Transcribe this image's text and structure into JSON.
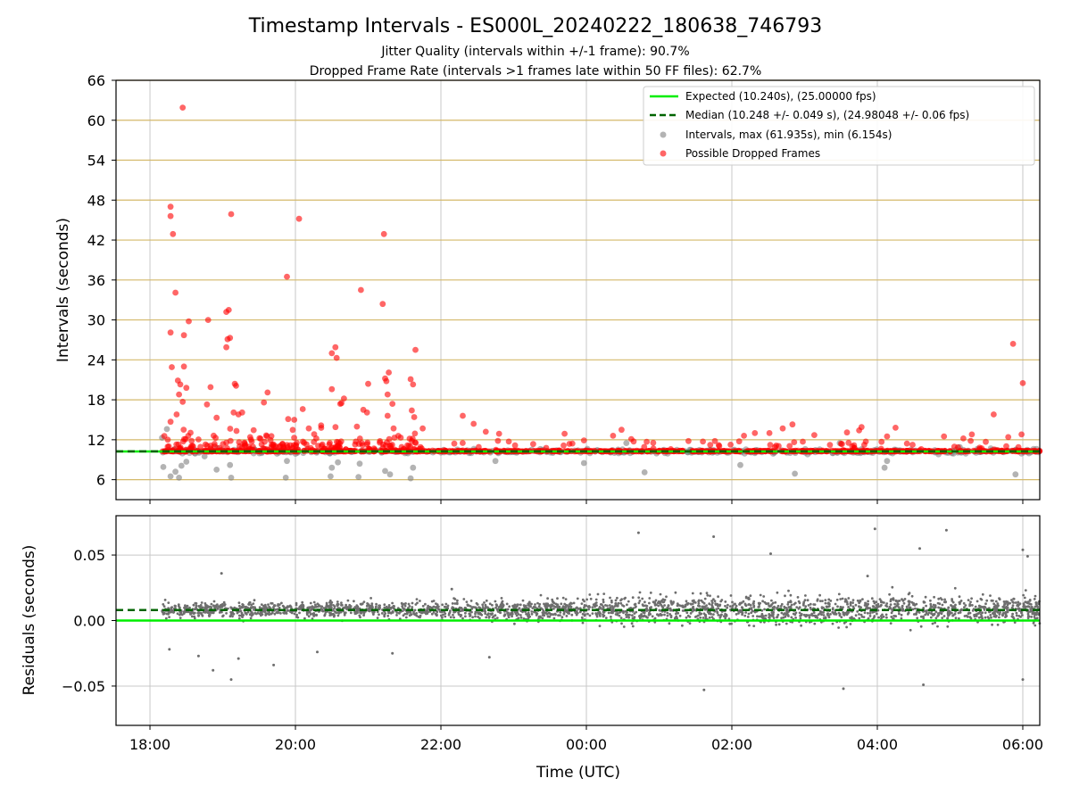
{
  "title": "Timestamp Intervals - ES000L_20240222_180638_746793",
  "subtitle_1": "Jitter Quality (intervals within +/-1 frame): 90.7%",
  "subtitle_2": "Dropped Frame Rate (intervals >1 frames late within 50 FF files): 62.7%",
  "colors": {
    "expected": "#00ee00",
    "median": "#006400",
    "intervals": "#808080",
    "dropped": "#ff0000",
    "gold_grid": "#d4b96a",
    "gray_grid": "#c8c8c8",
    "residuals": "#6e6e6e"
  },
  "chart_data": [
    {
      "type": "scatter",
      "ylabel": "Intervals (seconds)",
      "ylim": [
        3,
        66
      ],
      "yticks": [
        6,
        12,
        18,
        24,
        30,
        36,
        42,
        48,
        54,
        60,
        66
      ],
      "ytick_labels": [
        "6",
        "12",
        "18",
        "24",
        "30",
        "36",
        "42",
        "48",
        "54",
        "60",
        "66"
      ],
      "x_range_hours": [
        "17:32",
        "06:14"
      ],
      "grid": "horizontal gold lines at y ticks, vertical gray lines at x ticks",
      "expected_line": 10.24,
      "median_line": 10.248,
      "legend_position": "top-right",
      "legend": [
        {
          "label": "Expected (10.240s), (25.00000 fps)",
          "style": "solid green line"
        },
        {
          "label": "Median (10.248 +/- 0.049 s), (24.98048 +/- 0.06 fps)",
          "style": "dashed dark green line"
        },
        {
          "label": "Intervals, max (61.935s), min (6.154s)",
          "style": "gray dot"
        },
        {
          "label": "Possible Dropped Frames",
          "style": "red dot"
        }
      ],
      "interval_stats": {
        "max": 61.935,
        "min": 6.154
      },
      "dropped_outliers": [
        {
          "t": "18:27",
          "v": 61.9
        },
        {
          "t": "18:17",
          "v": 47.0
        },
        {
          "t": "18:17",
          "v": 45.6
        },
        {
          "t": "18:19",
          "v": 42.9
        },
        {
          "t": "18:21",
          "v": 34.1
        },
        {
          "t": "18:17",
          "v": 28.1
        },
        {
          "t": "18:32",
          "v": 29.8
        },
        {
          "t": "18:28",
          "v": 27.7
        },
        {
          "t": "18:48",
          "v": 30.0
        },
        {
          "t": "18:18",
          "v": 22.9
        },
        {
          "t": "18:28",
          "v": 23.0
        },
        {
          "t": "18:23",
          "v": 20.9
        },
        {
          "t": "18:25",
          "v": 20.3
        },
        {
          "t": "18:30",
          "v": 19.8
        },
        {
          "t": "18:50",
          "v": 19.9
        },
        {
          "t": "18:24",
          "v": 18.8
        },
        {
          "t": "18:27",
          "v": 17.7
        },
        {
          "t": "18:47",
          "v": 17.3
        },
        {
          "t": "18:55",
          "v": 15.3
        },
        {
          "t": "18:22",
          "v": 15.8
        },
        {
          "t": "18:17",
          "v": 14.7
        },
        {
          "t": "19:03",
          "v": 31.2
        },
        {
          "t": "19:05",
          "v": 31.5
        },
        {
          "t": "19:06",
          "v": 27.3
        },
        {
          "t": "19:04",
          "v": 27.1
        },
        {
          "t": "19:03",
          "v": 25.9
        },
        {
          "t": "19:07",
          "v": 45.9
        },
        {
          "t": "19:10",
          "v": 20.4
        },
        {
          "t": "19:11",
          "v": 20.1
        },
        {
          "t": "19:09",
          "v": 16.1
        },
        {
          "t": "19:13",
          "v": 15.8
        },
        {
          "t": "19:16",
          "v": 16.1
        },
        {
          "t": "19:34",
          "v": 17.6
        },
        {
          "t": "19:37",
          "v": 19.1
        },
        {
          "t": "19:53",
          "v": 36.5
        },
        {
          "t": "19:54",
          "v": 15.1
        },
        {
          "t": "19:59",
          "v": 15.0
        },
        {
          "t": "20:03",
          "v": 45.2
        },
        {
          "t": "20:06",
          "v": 16.6
        },
        {
          "t": "20:11",
          "v": 13.7
        },
        {
          "t": "20:30",
          "v": 25.0
        },
        {
          "t": "20:33",
          "v": 25.9
        },
        {
          "t": "20:34",
          "v": 24.3
        },
        {
          "t": "20:30",
          "v": 19.6
        },
        {
          "t": "20:38",
          "v": 17.5
        },
        {
          "t": "20:40",
          "v": 18.2
        },
        {
          "t": "20:37",
          "v": 17.4
        },
        {
          "t": "20:54",
          "v": 34.5
        },
        {
          "t": "21:00",
          "v": 20.4
        },
        {
          "t": "20:56",
          "v": 16.5
        },
        {
          "t": "20:59",
          "v": 16.1
        },
        {
          "t": "21:13",
          "v": 42.9
        },
        {
          "t": "21:12",
          "v": 32.4
        },
        {
          "t": "21:14",
          "v": 21.2
        },
        {
          "t": "21:17",
          "v": 22.1
        },
        {
          "t": "21:15",
          "v": 20.8
        },
        {
          "t": "21:16",
          "v": 18.8
        },
        {
          "t": "21:20",
          "v": 17.4
        },
        {
          "t": "21:16",
          "v": 15.6
        },
        {
          "t": "21:21",
          "v": 13.7
        },
        {
          "t": "21:35",
          "v": 21.1
        },
        {
          "t": "21:37",
          "v": 20.3
        },
        {
          "t": "21:39",
          "v": 25.5
        },
        {
          "t": "21:36",
          "v": 16.4
        },
        {
          "t": "21:38",
          "v": 15.4
        },
        {
          "t": "21:45",
          "v": 13.7
        },
        {
          "t": "22:18",
          "v": 15.6
        },
        {
          "t": "22:27",
          "v": 14.4
        },
        {
          "t": "22:37",
          "v": 13.2
        },
        {
          "t": "22:48",
          "v": 12.9
        },
        {
          "t": "23:42",
          "v": 12.9
        },
        {
          "t": "23:58",
          "v": 11.9
        },
        {
          "t": "00:22",
          "v": 12.6
        },
        {
          "t": "00:29",
          "v": 13.5
        },
        {
          "t": "00:37",
          "v": 12.1
        },
        {
          "t": "01:46",
          "v": 11.8
        },
        {
          "t": "02:10",
          "v": 12.6
        },
        {
          "t": "02:19",
          "v": 13.0
        },
        {
          "t": "02:31",
          "v": 13.0
        },
        {
          "t": "02:42",
          "v": 13.7
        },
        {
          "t": "02:50",
          "v": 14.3
        },
        {
          "t": "03:08",
          "v": 12.7
        },
        {
          "t": "03:35",
          "v": 13.1
        },
        {
          "t": "03:45",
          "v": 13.4
        },
        {
          "t": "03:47",
          "v": 13.9
        },
        {
          "t": "04:08",
          "v": 12.5
        },
        {
          "t": "04:15",
          "v": 13.8
        },
        {
          "t": "04:55",
          "v": 12.5
        },
        {
          "t": "05:11",
          "v": 12.2
        },
        {
          "t": "05:18",
          "v": 12.8
        },
        {
          "t": "05:36",
          "v": 15.8
        },
        {
          "t": "05:48",
          "v": 12.4
        },
        {
          "t": "05:52",
          "v": 26.4
        },
        {
          "t": "06:00",
          "v": 20.5
        },
        {
          "t": "05:59",
          "v": 12.8
        }
      ],
      "interval_outliers": [
        {
          "t": "18:10",
          "v": 12.3
        },
        {
          "t": "18:14",
          "v": 13.6
        },
        {
          "t": "18:11",
          "v": 7.9
        },
        {
          "t": "18:17",
          "v": 6.5
        },
        {
          "t": "18:21",
          "v": 7.2
        },
        {
          "t": "18:24",
          "v": 6.3
        },
        {
          "t": "18:26",
          "v": 8.1
        },
        {
          "t": "18:30",
          "v": 8.7
        },
        {
          "t": "18:45",
          "v": 9.5
        },
        {
          "t": "18:55",
          "v": 7.5
        },
        {
          "t": "19:06",
          "v": 8.2
        },
        {
          "t": "19:07",
          "v": 6.3
        },
        {
          "t": "19:52",
          "v": 6.3
        },
        {
          "t": "19:53",
          "v": 8.8
        },
        {
          "t": "20:29",
          "v": 6.5
        },
        {
          "t": "20:30",
          "v": 7.8
        },
        {
          "t": "20:35",
          "v": 8.6
        },
        {
          "t": "20:52",
          "v": 6.4
        },
        {
          "t": "20:53",
          "v": 8.4
        },
        {
          "t": "21:14",
          "v": 7.3
        },
        {
          "t": "21:18",
          "v": 6.8
        },
        {
          "t": "21:35",
          "v": 6.2
        },
        {
          "t": "21:37",
          "v": 7.8
        },
        {
          "t": "22:45",
          "v": 8.8
        },
        {
          "t": "23:58",
          "v": 8.5
        },
        {
          "t": "00:48",
          "v": 7.1
        },
        {
          "t": "02:07",
          "v": 8.2
        },
        {
          "t": "02:52",
          "v": 6.9
        },
        {
          "t": "04:06",
          "v": 7.8
        },
        {
          "t": "04:08",
          "v": 8.8
        },
        {
          "t": "05:54",
          "v": 6.8
        },
        {
          "t": "05:08",
          "v": 10.9
        },
        {
          "t": "03:29",
          "v": 11.5
        },
        {
          "t": "00:33",
          "v": 11.5
        },
        {
          "t": "23:22",
          "v": 10.6
        }
      ],
      "dense_band": {
        "from": "18:10",
        "to": "06:14",
        "center": 10.24,
        "spread": 0.35
      }
    },
    {
      "type": "scatter",
      "xlabel": "Time (UTC)",
      "ylabel": "Residuals (seconds)",
      "ylim": [
        -0.08,
        0.08
      ],
      "yticks": [
        -0.05,
        0.0,
        0.05
      ],
      "ytick_labels": [
        "−0.05",
        "0.00",
        "0.05"
      ],
      "xticks": [
        "18:00",
        "20:00",
        "22:00",
        "00:00",
        "02:00",
        "04:00",
        "06:00"
      ],
      "expected_line": 0.0,
      "median_line": 0.008,
      "grid": "gray lines at x and y ticks",
      "residual_outliers": [
        {
          "t": "18:16",
          "v": -0.022
        },
        {
          "t": "18:40",
          "v": -0.027
        },
        {
          "t": "18:52",
          "v": -0.038
        },
        {
          "t": "19:07",
          "v": -0.045
        },
        {
          "t": "19:13",
          "v": -0.029
        },
        {
          "t": "19:42",
          "v": -0.034
        },
        {
          "t": "18:59",
          "v": 0.036
        },
        {
          "t": "20:18",
          "v": -0.024
        },
        {
          "t": "21:20",
          "v": -0.025
        },
        {
          "t": "22:09",
          "v": 0.024
        },
        {
          "t": "22:40",
          "v": -0.028
        },
        {
          "t": "00:43",
          "v": 0.067
        },
        {
          "t": "01:37",
          "v": -0.053
        },
        {
          "t": "01:45",
          "v": 0.064
        },
        {
          "t": "02:32",
          "v": 0.051
        },
        {
          "t": "03:32",
          "v": -0.052
        },
        {
          "t": "03:58",
          "v": 0.07
        },
        {
          "t": "04:35",
          "v": 0.055
        },
        {
          "t": "04:38",
          "v": -0.049
        },
        {
          "t": "04:57",
          "v": 0.069
        },
        {
          "t": "06:00",
          "v": 0.054
        },
        {
          "t": "06:00",
          "v": -0.045
        },
        {
          "t": "06:04",
          "v": 0.049
        },
        {
          "t": "03:52",
          "v": 0.034
        }
      ]
    }
  ]
}
